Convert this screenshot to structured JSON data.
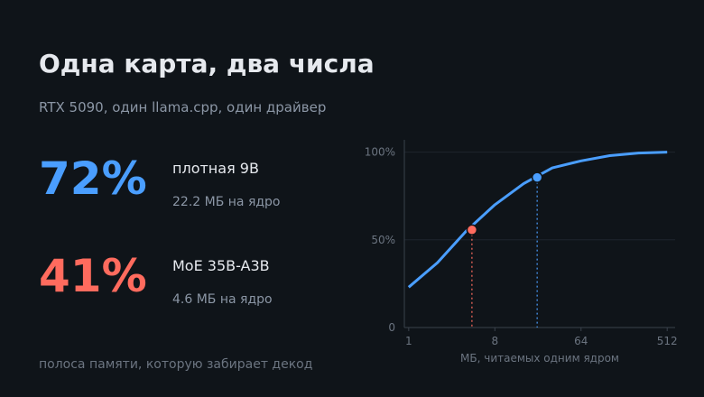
{
  "title": "Одна карта, два числа",
  "subtitle": "RTX 5090, один llama.cpp, один драйвер",
  "stats": [
    {
      "value": "72%",
      "name": "плотная 9B",
      "detail": "22.2 МБ на ядро",
      "color": "#4a9eff"
    },
    {
      "value": "41%",
      "name": "MoE 35B-A3B",
      "detail": "4.6 МБ на ядро",
      "color": "#ff6b5e"
    }
  ],
  "footer": "полоса памяти, которую забирает декод",
  "chart_data": {
    "type": "line",
    "xlabel": "МБ, читаемых одним ядром",
    "log_x": true,
    "log_base": 2,
    "x": [
      1,
      2,
      4,
      8,
      16,
      32,
      64,
      128,
      256,
      512
    ],
    "values": [
      23,
      37,
      55,
      70,
      82,
      91,
      95,
      98,
      99.5,
      100
    ],
    "color": "#4a9eff",
    "points": [
      {
        "x": 4.6,
        "y": 55.7,
        "color": "#ff6b5e"
      },
      {
        "x": 22.2,
        "y": 85.6,
        "color": "#4a9eff"
      }
    ],
    "xlim": [
      0.9,
      620
    ],
    "xticks": [
      1,
      8,
      64,
      512
    ],
    "ylim": [
      0,
      107
    ],
    "yticks": [
      0,
      {
        "value": 50,
        "label": "50%"
      },
      {
        "value": 100,
        "label": "100%"
      }
    ],
    "grid": true
  }
}
